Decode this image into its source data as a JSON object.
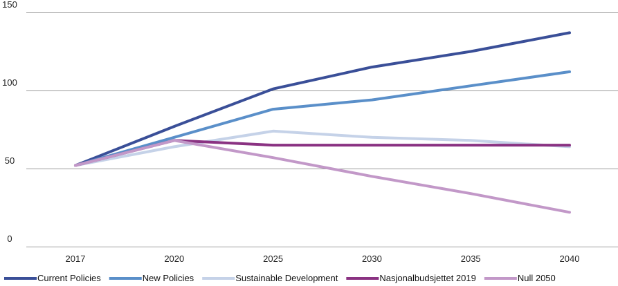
{
  "chart_data": {
    "type": "line",
    "title": "",
    "xlabel": "",
    "ylabel": "",
    "categories": [
      "2017",
      "2020",
      "2025",
      "2030",
      "2035",
      "2040"
    ],
    "ylim": [
      0,
      150
    ],
    "yticks": [
      0,
      50,
      100,
      150
    ],
    "grid": true,
    "legend_position": "bottom",
    "series": [
      {
        "name": "Current Policies",
        "color": "#3a4f98",
        "values": [
          52,
          77,
          101,
          115,
          125,
          137
        ]
      },
      {
        "name": "New Policies",
        "color": "#5a8fc9",
        "values": [
          52,
          70,
          88,
          94,
          103,
          112
        ]
      },
      {
        "name": "Sustainable Development",
        "color": "#c5d2e8",
        "values": [
          52,
          64,
          74,
          70,
          68,
          64
        ]
      },
      {
        "name": "Nasjonalbudsjettet 2019",
        "color": "#8a3282",
        "values": [
          52,
          68,
          65,
          65,
          65,
          65
        ]
      },
      {
        "name": "Null 2050",
        "color": "#c298c8",
        "values": [
          52,
          68,
          57,
          45,
          34,
          22
        ]
      }
    ]
  }
}
